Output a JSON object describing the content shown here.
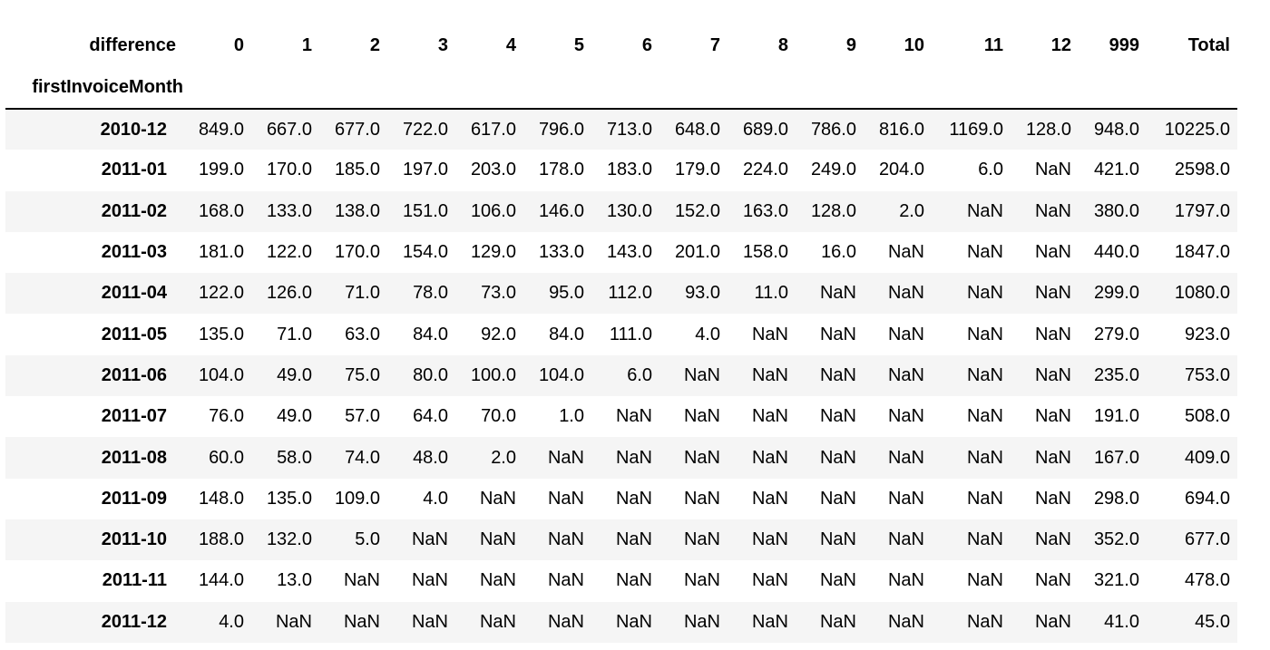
{
  "table": {
    "columns_name": "difference",
    "index_name": "firstInvoiceMonth",
    "columns": [
      "0",
      "1",
      "2",
      "3",
      "4",
      "5",
      "6",
      "7",
      "8",
      "9",
      "10",
      "11",
      "12",
      "999",
      "Total"
    ],
    "rows": [
      {
        "index": "2010-12",
        "values": [
          "849.0",
          "667.0",
          "677.0",
          "722.0",
          "617.0",
          "796.0",
          "713.0",
          "648.0",
          "689.0",
          "786.0",
          "816.0",
          "1169.0",
          "128.0",
          "948.0",
          "10225.0"
        ]
      },
      {
        "index": "2011-01",
        "values": [
          "199.0",
          "170.0",
          "185.0",
          "197.0",
          "203.0",
          "178.0",
          "183.0",
          "179.0",
          "224.0",
          "249.0",
          "204.0",
          "6.0",
          "NaN",
          "421.0",
          "2598.0"
        ]
      },
      {
        "index": "2011-02",
        "values": [
          "168.0",
          "133.0",
          "138.0",
          "151.0",
          "106.0",
          "146.0",
          "130.0",
          "152.0",
          "163.0",
          "128.0",
          "2.0",
          "NaN",
          "NaN",
          "380.0",
          "1797.0"
        ]
      },
      {
        "index": "2011-03",
        "values": [
          "181.0",
          "122.0",
          "170.0",
          "154.0",
          "129.0",
          "133.0",
          "143.0",
          "201.0",
          "158.0",
          "16.0",
          "NaN",
          "NaN",
          "NaN",
          "440.0",
          "1847.0"
        ]
      },
      {
        "index": "2011-04",
        "values": [
          "122.0",
          "126.0",
          "71.0",
          "78.0",
          "73.0",
          "95.0",
          "112.0",
          "93.0",
          "11.0",
          "NaN",
          "NaN",
          "NaN",
          "NaN",
          "299.0",
          "1080.0"
        ]
      },
      {
        "index": "2011-05",
        "values": [
          "135.0",
          "71.0",
          "63.0",
          "84.0",
          "92.0",
          "84.0",
          "111.0",
          "4.0",
          "NaN",
          "NaN",
          "NaN",
          "NaN",
          "NaN",
          "279.0",
          "923.0"
        ]
      },
      {
        "index": "2011-06",
        "values": [
          "104.0",
          "49.0",
          "75.0",
          "80.0",
          "100.0",
          "104.0",
          "6.0",
          "NaN",
          "NaN",
          "NaN",
          "NaN",
          "NaN",
          "NaN",
          "235.0",
          "753.0"
        ]
      },
      {
        "index": "2011-07",
        "values": [
          "76.0",
          "49.0",
          "57.0",
          "64.0",
          "70.0",
          "1.0",
          "NaN",
          "NaN",
          "NaN",
          "NaN",
          "NaN",
          "NaN",
          "NaN",
          "191.0",
          "508.0"
        ]
      },
      {
        "index": "2011-08",
        "values": [
          "60.0",
          "58.0",
          "74.0",
          "48.0",
          "2.0",
          "NaN",
          "NaN",
          "NaN",
          "NaN",
          "NaN",
          "NaN",
          "NaN",
          "NaN",
          "167.0",
          "409.0"
        ]
      },
      {
        "index": "2011-09",
        "values": [
          "148.0",
          "135.0",
          "109.0",
          "4.0",
          "NaN",
          "NaN",
          "NaN",
          "NaN",
          "NaN",
          "NaN",
          "NaN",
          "NaN",
          "NaN",
          "298.0",
          "694.0"
        ]
      },
      {
        "index": "2011-10",
        "values": [
          "188.0",
          "132.0",
          "5.0",
          "NaN",
          "NaN",
          "NaN",
          "NaN",
          "NaN",
          "NaN",
          "NaN",
          "NaN",
          "NaN",
          "NaN",
          "352.0",
          "677.0"
        ]
      },
      {
        "index": "2011-11",
        "values": [
          "144.0",
          "13.0",
          "NaN",
          "NaN",
          "NaN",
          "NaN",
          "NaN",
          "NaN",
          "NaN",
          "NaN",
          "NaN",
          "NaN",
          "NaN",
          "321.0",
          "478.0"
        ]
      },
      {
        "index": "2011-12",
        "values": [
          "4.0",
          "NaN",
          "NaN",
          "NaN",
          "NaN",
          "NaN",
          "NaN",
          "NaN",
          "NaN",
          "NaN",
          "NaN",
          "NaN",
          "NaN",
          "41.0",
          "45.0"
        ]
      }
    ]
  }
}
